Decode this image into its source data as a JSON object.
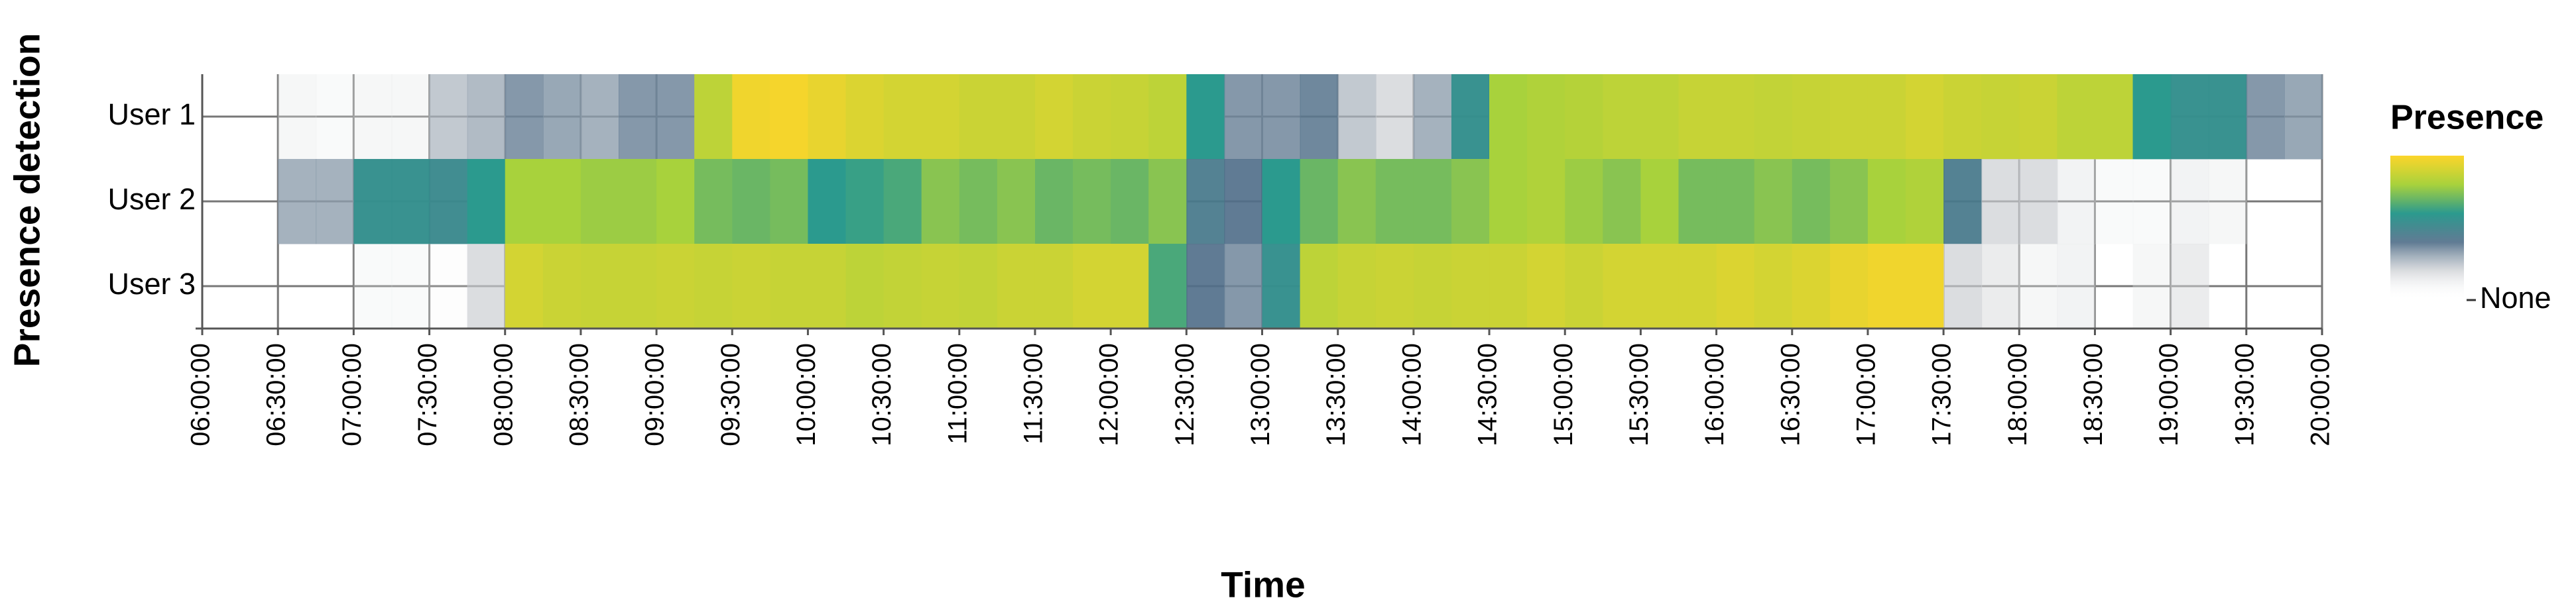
{
  "chart_data": {
    "type": "heatmap",
    "title": "Presence",
    "xlabel": "Time",
    "ylabel": "Presence detection",
    "categories": [
      "User 1",
      "User 2",
      "User 3"
    ],
    "x": [
      "06:00:00",
      "06:15:00",
      "06:30:00",
      "06:45:00",
      "07:00:00",
      "07:15:00",
      "07:30:00",
      "07:45:00",
      "08:00:00",
      "08:15:00",
      "08:30:00",
      "08:45:00",
      "09:00:00",
      "09:15:00",
      "09:30:00",
      "09:45:00",
      "10:00:00",
      "10:15:00",
      "10:30:00",
      "10:45:00",
      "11:00:00",
      "11:15:00",
      "11:30:00",
      "11:45:00",
      "12:00:00",
      "12:15:00",
      "12:30:00",
      "12:45:00",
      "13:00:00",
      "13:15:00",
      "13:30:00",
      "13:45:00",
      "14:00:00",
      "14:15:00",
      "14:30:00",
      "14:45:00",
      "15:00:00",
      "15:15:00",
      "15:30:00",
      "15:45:00",
      "16:00:00",
      "16:15:00",
      "16:30:00",
      "16:45:00",
      "17:00:00",
      "17:15:00",
      "17:30:00",
      "17:45:00",
      "18:00:00",
      "18:15:00",
      "18:30:00",
      "18:45:00",
      "19:00:00",
      "19:15:00",
      "19:30:00",
      "19:45:00"
    ],
    "z": [
      [
        null,
        null,
        0.1,
        0.08,
        0.1,
        0.1,
        0.25,
        0.28,
        0.35,
        0.32,
        0.3,
        0.35,
        0.35,
        0.85,
        0.97,
        0.98,
        0.95,
        0.92,
        0.9,
        0.9,
        0.88,
        0.88,
        0.9,
        0.88,
        0.87,
        0.85,
        0.6,
        0.35,
        0.35,
        0.38,
        0.25,
        0.2,
        0.3,
        0.55,
        0.8,
        0.82,
        0.83,
        0.85,
        0.85,
        0.87,
        0.87,
        0.86,
        0.87,
        0.88,
        0.88,
        0.9,
        0.88,
        0.87,
        0.88,
        0.85,
        0.85,
        0.6,
        0.55,
        0.55,
        0.35,
        0.32
      ],
      [
        null,
        null,
        0.3,
        0.3,
        0.55,
        0.55,
        0.52,
        0.6,
        0.8,
        0.8,
        0.78,
        0.78,
        0.8,
        0.72,
        0.7,
        0.72,
        0.6,
        0.62,
        0.65,
        0.75,
        0.72,
        0.75,
        0.7,
        0.72,
        0.7,
        0.75,
        0.45,
        0.4,
        0.6,
        0.7,
        0.75,
        0.72,
        0.72,
        0.75,
        0.8,
        0.82,
        0.78,
        0.75,
        0.8,
        0.72,
        0.72,
        0.75,
        0.72,
        0.75,
        0.8,
        0.82,
        0.45,
        0.2,
        0.2,
        0.12,
        0.08,
        0.08,
        0.12,
        0.1,
        null,
        null
      ],
      [
        null,
        null,
        null,
        null,
        0.08,
        0.08,
        0.05,
        0.2,
        0.9,
        0.88,
        0.87,
        0.87,
        0.88,
        0.87,
        0.88,
        0.87,
        0.87,
        0.85,
        0.86,
        0.87,
        0.86,
        0.88,
        0.88,
        0.9,
        0.9,
        0.65,
        0.4,
        0.35,
        0.55,
        0.85,
        0.87,
        0.88,
        0.87,
        0.88,
        0.88,
        0.9,
        0.88,
        0.9,
        0.9,
        0.9,
        0.92,
        0.9,
        0.92,
        0.95,
        0.97,
        0.97,
        0.2,
        0.15,
        0.1,
        0.12,
        null,
        0.1,
        0.15,
        null,
        null,
        null
      ]
    ],
    "xlim": [
      "06:00:00",
      "20:00:00"
    ],
    "xticks": [
      "06:00:00",
      "06:30:00",
      "07:00:00",
      "07:30:00",
      "08:00:00",
      "08:30:00",
      "09:00:00",
      "09:30:00",
      "10:00:00",
      "10:30:00",
      "11:00:00",
      "11:30:00",
      "12:00:00",
      "12:30:00",
      "13:00:00",
      "13:30:00",
      "14:00:00",
      "14:30:00",
      "15:00:00",
      "15:30:00",
      "16:00:00",
      "16:30:00",
      "17:00:00",
      "17:30:00",
      "18:00:00",
      "18:30:00",
      "19:00:00",
      "19:30:00",
      "20:00:00"
    ],
    "clim": [
      0,
      1
    ],
    "cticks": [
      {
        "value": 0,
        "label": "None"
      }
    ],
    "colormap": [
      "#ffffff00",
      "#c9ccd0aa",
      "#4f6d88e6",
      "#2b9a8e",
      "#a8d23c",
      "#fdd52a"
    ],
    "grid": true
  }
}
